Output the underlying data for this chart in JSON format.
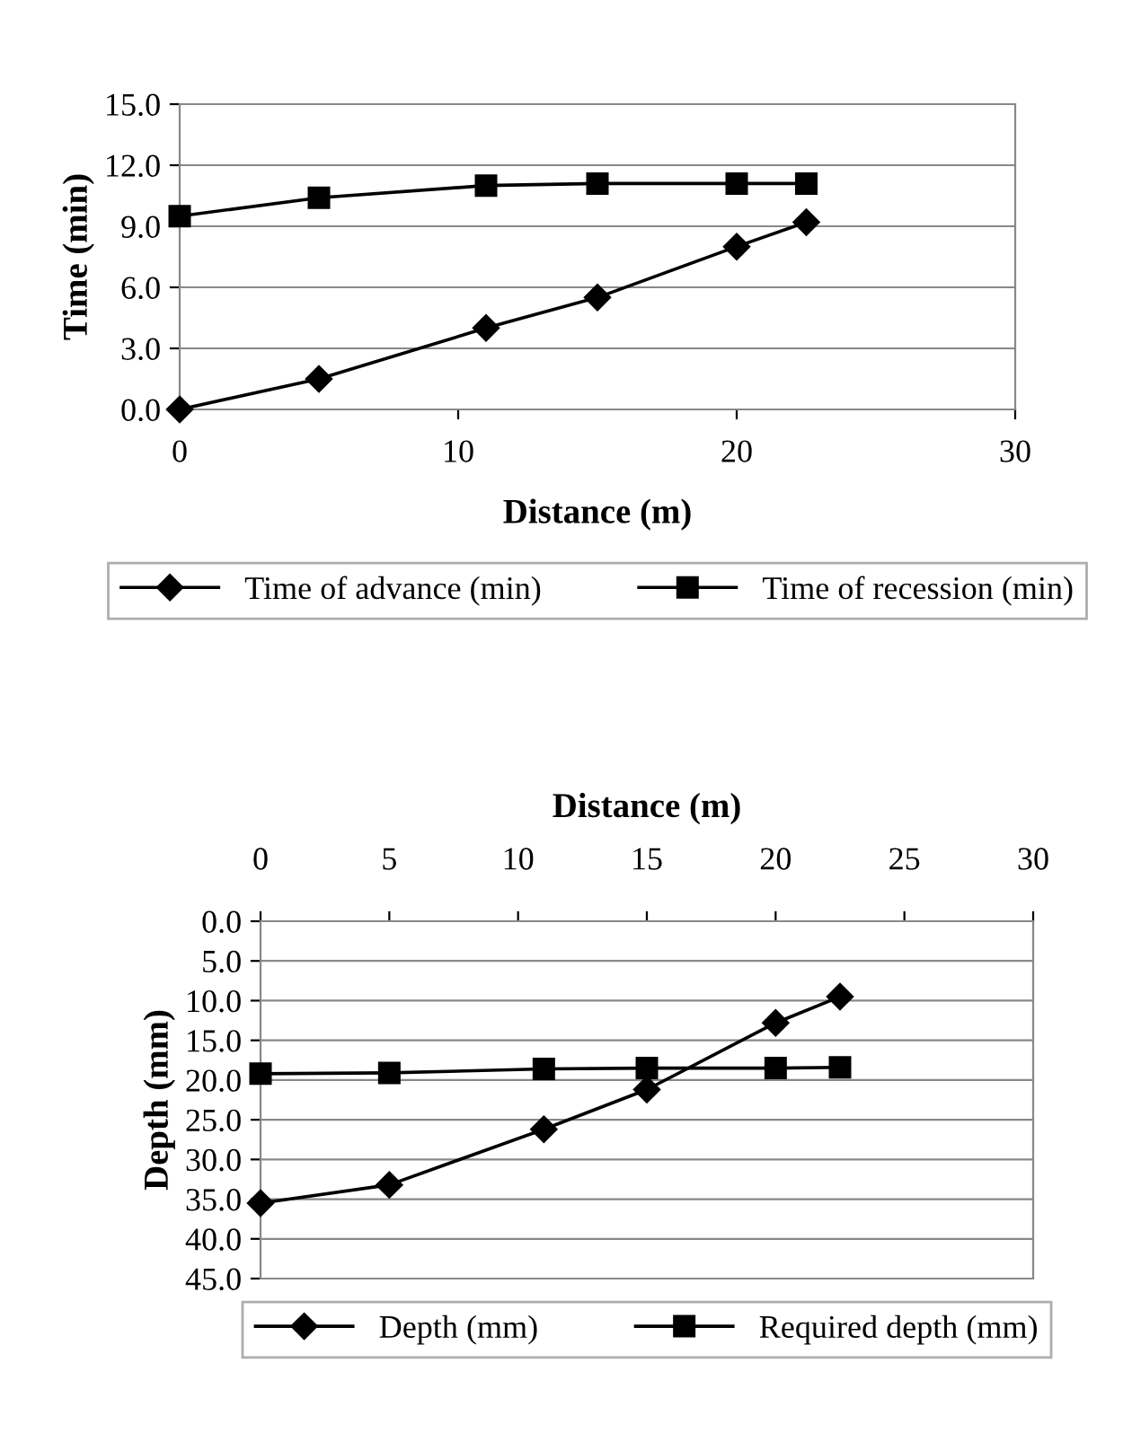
{
  "chart_data": [
    {
      "type": "line",
      "xlabel": "Distance (m)",
      "ylabel": "Time (min)",
      "xlim": [
        0,
        30
      ],
      "xticks": [
        0,
        10,
        20,
        30
      ],
      "ylim": [
        0,
        15
      ],
      "yticks": [
        {
          "value": 0,
          "label": "0.0"
        },
        {
          "value": 3,
          "label": "3.0"
        },
        {
          "value": 6,
          "label": "6.0"
        },
        {
          "value": 9,
          "label": "9.0"
        },
        {
          "value": 12,
          "label": "12.0"
        },
        {
          "value": 15,
          "label": "15.0"
        }
      ],
      "grid": "y",
      "legend": "bottom",
      "line_style": "solid",
      "series": [
        {
          "name": "Time of advance (min)",
          "color": "#000000",
          "marker": "diamond",
          "x": [
            0,
            5,
            11,
            15,
            20,
            22.5
          ],
          "values": [
            0,
            1.5,
            4.0,
            5.5,
            8.0,
            9.2
          ]
        },
        {
          "name": "Time of recession (min)",
          "color": "#000000",
          "marker": "square",
          "x": [
            0,
            5,
            11,
            15,
            20,
            22.5
          ],
          "values": [
            9.5,
            10.4,
            11.0,
            11.1,
            11.1,
            11.1
          ]
        }
      ]
    },
    {
      "type": "line",
      "xlabel": "Distance (m)",
      "ylabel": "Depth (mm)",
      "xlim": [
        0,
        30
      ],
      "xticks": [
        0,
        5,
        10,
        15,
        20,
        25,
        30
      ],
      "ylim": [
        45,
        0
      ],
      "yticks": [
        {
          "value": 0,
          "label": "0.0"
        },
        {
          "value": 5,
          "label": "5.0"
        },
        {
          "value": 10,
          "label": "10.0"
        },
        {
          "value": 15,
          "label": "15.0"
        },
        {
          "value": 20,
          "label": "20.0"
        },
        {
          "value": 25,
          "label": "25.0"
        },
        {
          "value": 30,
          "label": "30.0"
        },
        {
          "value": 35,
          "label": "35.0"
        },
        {
          "value": 40,
          "label": "40.0"
        },
        {
          "value": 45,
          "label": "45.0"
        }
      ],
      "grid": "y",
      "legend": "bottom",
      "line_style": "solid",
      "series": [
        {
          "name": "Depth (mm)",
          "color": "#000000",
          "marker": "diamond",
          "x": [
            0,
            5,
            11,
            15,
            20,
            22.5
          ],
          "values": [
            35.5,
            33.2,
            26.2,
            21.2,
            12.8,
            9.5
          ]
        },
        {
          "name": "Required depth (mm)",
          "color": "#000000",
          "marker": "square",
          "x": [
            0,
            5,
            11,
            15,
            20,
            22.5
          ],
          "values": [
            19.2,
            19.1,
            18.6,
            18.5,
            18.5,
            18.4
          ]
        }
      ]
    }
  ]
}
